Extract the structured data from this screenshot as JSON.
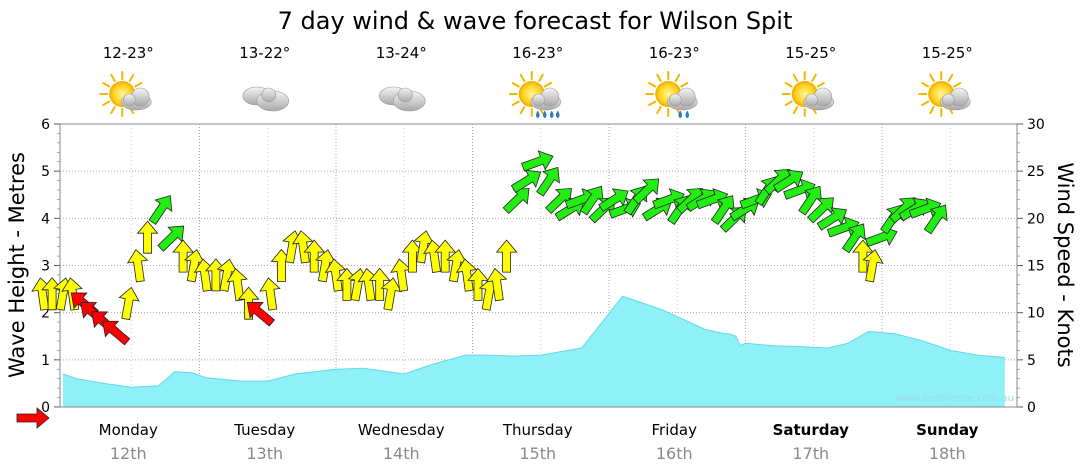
{
  "chart_data": {
    "type": "area",
    "title": "7 day wind & wave forecast for Wilson Spit",
    "y_left_label": "Wave Height - Metres",
    "y_right_label": "Wind Speed - Knots",
    "y_left_range": [
      0,
      6
    ],
    "y_left_ticks": [
      "0",
      "1",
      "2",
      "3",
      "4",
      "5",
      "6"
    ],
    "y_right_range": [
      0,
      30
    ],
    "y_right_ticks": [
      "0",
      "5",
      "10",
      "15",
      "20",
      "25",
      "30"
    ],
    "days": [
      {
        "name": "Monday",
        "date": "12th",
        "temp": "12-23°",
        "icon": "sun-cloud-icon",
        "bold": false
      },
      {
        "name": "Tuesday",
        "date": "13th",
        "temp": "13-22°",
        "icon": "cloud-icon",
        "bold": false
      },
      {
        "name": "Wednesday",
        "date": "14th",
        "temp": "13-24°",
        "icon": "cloud-icon",
        "bold": false
      },
      {
        "name": "Thursday",
        "date": "15th",
        "temp": "16-23°",
        "icon": "sun-rain-icon",
        "bold": false
      },
      {
        "name": "Friday",
        "date": "16th",
        "temp": "16-23°",
        "icon": "sun-shower-icon",
        "bold": false
      },
      {
        "name": "Saturday",
        "date": "17th",
        "temp": "15-25°",
        "icon": "sun-cloud-icon",
        "bold": true
      },
      {
        "name": "Sunday",
        "date": "18th",
        "temp": "15-25°",
        "icon": "sun-cloud-icon",
        "bold": true
      }
    ],
    "wave_height_series": {
      "name": "Wave Height",
      "day_fraction": [
        0.0,
        0.1,
        0.3,
        0.5,
        0.7,
        0.82,
        0.95,
        1.05,
        1.3,
        1.5,
        1.7,
        1.85,
        2.0,
        2.2,
        2.5,
        2.7,
        2.95,
        3.1,
        3.3,
        3.5,
        3.8,
        4.1,
        4.4,
        4.7,
        4.85,
        4.88,
        4.93,
        4.96,
        5.0,
        5.2,
        5.4,
        5.6,
        5.75,
        5.9,
        6.1,
        6.3,
        6.5,
        6.7,
        6.9
      ],
      "values": [
        0.7,
        0.6,
        0.5,
        0.42,
        0.45,
        0.75,
        0.72,
        0.62,
        0.55,
        0.55,
        0.7,
        0.75,
        0.8,
        0.82,
        0.7,
        0.9,
        1.1,
        1.1,
        1.08,
        1.1,
        1.25,
        2.35,
        2.05,
        1.65,
        1.55,
        1.55,
        1.5,
        1.3,
        1.35,
        1.3,
        1.28,
        1.25,
        1.35,
        1.6,
        1.55,
        1.4,
        1.2,
        1.1,
        1.05
      ]
    },
    "wind_speed_series": {
      "name": "Wind Speed",
      "points": [
        {
          "d": -0.22,
          "v": 0,
          "c": "red"
        },
        {
          "d": -0.15,
          "v": 12,
          "c": "yellow"
        },
        {
          "d": -0.08,
          "v": 12,
          "c": "yellow"
        },
        {
          "d": 0.0,
          "v": 12,
          "c": "yellow"
        },
        {
          "d": 0.07,
          "v": 12,
          "c": "yellow"
        },
        {
          "d": 0.15,
          "v": 11,
          "c": "red"
        },
        {
          "d": 0.22,
          "v": 10,
          "c": "red"
        },
        {
          "d": 0.3,
          "v": 9,
          "c": "red"
        },
        {
          "d": 0.38,
          "v": 8,
          "c": "red"
        },
        {
          "d": 0.48,
          "v": 11,
          "c": "yellow"
        },
        {
          "d": 0.55,
          "v": 15,
          "c": "yellow"
        },
        {
          "d": 0.62,
          "v": 18,
          "c": "yellow"
        },
        {
          "d": 0.72,
          "v": 21,
          "c": "green"
        },
        {
          "d": 0.8,
          "v": 18,
          "c": "green"
        },
        {
          "d": 0.88,
          "v": 16,
          "c": "yellow"
        },
        {
          "d": 0.96,
          "v": 15,
          "c": "yellow"
        },
        {
          "d": 1.04,
          "v": 14,
          "c": "yellow"
        },
        {
          "d": 1.12,
          "v": 14,
          "c": "yellow"
        },
        {
          "d": 1.2,
          "v": 14,
          "c": "yellow"
        },
        {
          "d": 1.28,
          "v": 13,
          "c": "yellow"
        },
        {
          "d": 1.36,
          "v": 11,
          "c": "yellow"
        },
        {
          "d": 1.44,
          "v": 10,
          "c": "red"
        },
        {
          "d": 1.52,
          "v": 12,
          "c": "yellow"
        },
        {
          "d": 1.6,
          "v": 15,
          "c": "yellow"
        },
        {
          "d": 1.68,
          "v": 17,
          "c": "yellow"
        },
        {
          "d": 1.76,
          "v": 17,
          "c": "yellow"
        },
        {
          "d": 1.84,
          "v": 16,
          "c": "yellow"
        },
        {
          "d": 1.92,
          "v": 15,
          "c": "yellow"
        },
        {
          "d": 2.0,
          "v": 14,
          "c": "yellow"
        },
        {
          "d": 2.08,
          "v": 13,
          "c": "yellow"
        },
        {
          "d": 2.16,
          "v": 13,
          "c": "yellow"
        },
        {
          "d": 2.24,
          "v": 13,
          "c": "yellow"
        },
        {
          "d": 2.32,
          "v": 13,
          "c": "yellow"
        },
        {
          "d": 2.4,
          "v": 12,
          "c": "yellow"
        },
        {
          "d": 2.48,
          "v": 14,
          "c": "yellow"
        },
        {
          "d": 2.56,
          "v": 16,
          "c": "yellow"
        },
        {
          "d": 2.64,
          "v": 17,
          "c": "yellow"
        },
        {
          "d": 2.72,
          "v": 16,
          "c": "yellow"
        },
        {
          "d": 2.8,
          "v": 16,
          "c": "yellow"
        },
        {
          "d": 2.88,
          "v": 15,
          "c": "yellow"
        },
        {
          "d": 2.96,
          "v": 14,
          "c": "yellow"
        },
        {
          "d": 3.04,
          "v": 13,
          "c": "yellow"
        },
        {
          "d": 3.12,
          "v": 12,
          "c": "yellow"
        },
        {
          "d": 3.18,
          "v": 13,
          "c": "yellow"
        },
        {
          "d": 3.25,
          "v": 16,
          "c": "yellow"
        },
        {
          "d": 3.33,
          "v": 22,
          "c": "green"
        },
        {
          "d": 3.4,
          "v": 24,
          "c": "green"
        },
        {
          "d": 3.48,
          "v": 26,
          "c": "green"
        },
        {
          "d": 3.56,
          "v": 24,
          "c": "green"
        },
        {
          "d": 3.64,
          "v": 22,
          "c": "green"
        },
        {
          "d": 3.72,
          "v": 21,
          "c": "green"
        },
        {
          "d": 3.8,
          "v": 22,
          "c": "green"
        },
        {
          "d": 3.88,
          "v": 22,
          "c": "green"
        },
        {
          "d": 3.96,
          "v": 21,
          "c": "green"
        },
        {
          "d": 4.04,
          "v": 22,
          "c": "green"
        },
        {
          "d": 4.12,
          "v": 21,
          "c": "green"
        },
        {
          "d": 4.2,
          "v": 22,
          "c": "green"
        },
        {
          "d": 4.28,
          "v": 23,
          "c": "green"
        },
        {
          "d": 4.36,
          "v": 21,
          "c": "green"
        },
        {
          "d": 4.44,
          "v": 22,
          "c": "green"
        },
        {
          "d": 4.52,
          "v": 21,
          "c": "green"
        },
        {
          "d": 4.6,
          "v": 22,
          "c": "green"
        },
        {
          "d": 4.68,
          "v": 22,
          "c": "green"
        },
        {
          "d": 4.76,
          "v": 22,
          "c": "green"
        },
        {
          "d": 4.84,
          "v": 21,
          "c": "green"
        },
        {
          "d": 4.92,
          "v": 20,
          "c": "green"
        },
        {
          "d": 5.0,
          "v": 21,
          "c": "green"
        },
        {
          "d": 5.08,
          "v": 22,
          "c": "green"
        },
        {
          "d": 5.16,
          "v": 23,
          "c": "green"
        },
        {
          "d": 5.24,
          "v": 24,
          "c": "green"
        },
        {
          "d": 5.32,
          "v": 24,
          "c": "green"
        },
        {
          "d": 5.4,
          "v": 23,
          "c": "green"
        },
        {
          "d": 5.48,
          "v": 22,
          "c": "green"
        },
        {
          "d": 5.56,
          "v": 21,
          "c": "green"
        },
        {
          "d": 5.64,
          "v": 20,
          "c": "green"
        },
        {
          "d": 5.72,
          "v": 19,
          "c": "green"
        },
        {
          "d": 5.8,
          "v": 18,
          "c": "green"
        },
        {
          "d": 5.86,
          "v": 16,
          "c": "yellow"
        },
        {
          "d": 5.93,
          "v": 15,
          "c": "yellow"
        },
        {
          "d": 6.0,
          "v": 18,
          "c": "green"
        },
        {
          "d": 6.08,
          "v": 20,
          "c": "green"
        },
        {
          "d": 6.16,
          "v": 21,
          "c": "green"
        },
        {
          "d": 6.24,
          "v": 21,
          "c": "green"
        },
        {
          "d": 6.32,
          "v": 21,
          "c": "green"
        },
        {
          "d": 6.4,
          "v": 20,
          "c": "green"
        }
      ]
    },
    "grid": true,
    "colors": {
      "wave_fill": "#8ff0f7",
      "wave_stroke": "#5fd9e6",
      "wind_green": "#22ee11",
      "wind_yellow": "#ffff00",
      "wind_red": "#ff0000",
      "grid": "#a8a8a8"
    },
    "credit": "www.seabreeze.com.au"
  }
}
